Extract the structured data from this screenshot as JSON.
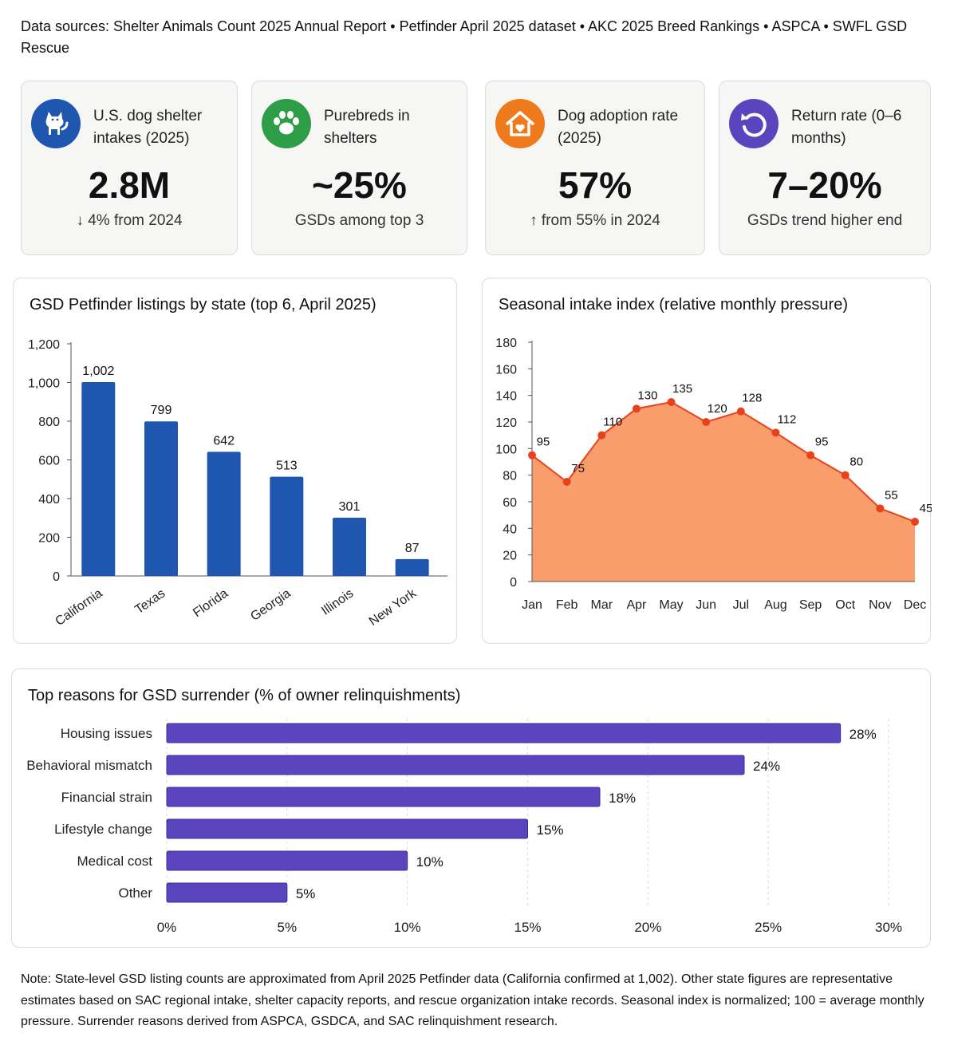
{
  "header": {
    "sources": "Data sources: Shelter Animals Count 2025 Annual Report • Petfinder April 2025 dataset • AKC 2025 Breed Rankings • ASPCA • SWFL GSD Rescue"
  },
  "kpis": [
    {
      "icon": "dog-icon",
      "color": "#1e56b0",
      "label": "U.S. dog shelter intakes (2025)",
      "value": "2.8M",
      "sub": "↓ 4% from 2024"
    },
    {
      "icon": "paw-icon",
      "color": "#2e9d47",
      "label": "Purebreds in shelters",
      "value": "~25%",
      "sub": "GSDs among top 3"
    },
    {
      "icon": "house-heart-icon",
      "color": "#ef7a1c",
      "label": "Dog adoption rate (2025)",
      "value": "57%",
      "sub": "↑ from 55% in 2024"
    },
    {
      "icon": "return-arrow-icon",
      "color": "#5a45be",
      "label": "Return rate (0–6 months)",
      "value": "7–20%",
      "sub": "GSDs trend higher end"
    }
  ],
  "chart_data": [
    {
      "type": "bar",
      "title": "GSD Petfinder listings by state (top 6, April 2025)",
      "categories": [
        "California",
        "Texas",
        "Florida",
        "Georgia",
        "Illinois",
        "New York"
      ],
      "values": [
        1002,
        799,
        642,
        513,
        301,
        87
      ],
      "value_labels": [
        "1,002",
        "799",
        "642",
        "513",
        "301",
        "87"
      ],
      "yticks": [
        "0",
        "200",
        "400",
        "600",
        "800",
        "1,000",
        "1,200"
      ],
      "ylim": [
        0,
        1200
      ],
      "color": "#1e56b0",
      "grid": false
    },
    {
      "type": "area",
      "title": "Seasonal intake index (relative monthly pressure)",
      "categories": [
        "Jan",
        "Feb",
        "Mar",
        "Apr",
        "May",
        "Jun",
        "Jul",
        "Aug",
        "Sep",
        "Oct",
        "Nov",
        "Dec"
      ],
      "values": [
        95,
        75,
        110,
        130,
        135,
        120,
        128,
        112,
        95,
        80,
        55,
        45
      ],
      "yticks": [
        "0",
        "20",
        "40",
        "60",
        "80",
        "100",
        "120",
        "140",
        "160",
        "180"
      ],
      "ylim": [
        0,
        180
      ],
      "fill_color": "#f99d6c",
      "line_color": "#e8421c",
      "grid": false
    },
    {
      "type": "bar",
      "orientation": "horizontal",
      "title": "Top reasons for GSD surrender (% of owner relinquishments)",
      "categories": [
        "Housing issues",
        "Behavioral mismatch",
        "Financial strain",
        "Lifestyle change",
        "Medical cost",
        "Other"
      ],
      "values": [
        28,
        24,
        18,
        15,
        10,
        5
      ],
      "value_labels": [
        "28%",
        "24%",
        "18%",
        "15%",
        "10%",
        "5%"
      ],
      "xticks": [
        "0%",
        "5%",
        "10%",
        "15%",
        "20%",
        "25%",
        "30%"
      ],
      "xlim": [
        0,
        30
      ],
      "color": "#5a45be",
      "grid": true
    }
  ],
  "footer": {
    "note": "Note: State-level GSD listing counts are approximated from April 2025 Petfinder data (California confirmed at 1,002). Other state figures are representative estimates based on SAC regional intake, shelter capacity reports, and rescue organization intake records. Seasonal index is normalized; 100 = average monthly pressure. Surrender reasons derived from ASPCA, GSDCA, and SAC relinquishment research."
  }
}
